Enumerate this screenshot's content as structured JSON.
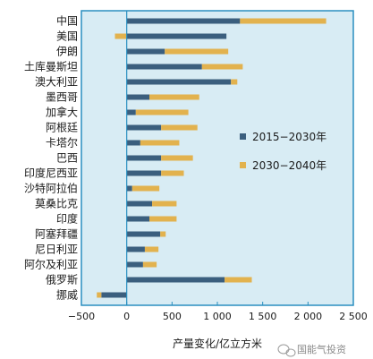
{
  "chart_data": {
    "type": "bar",
    "orientation": "horizontal",
    "stacked": true,
    "categories": [
      "中国",
      "美国",
      "伊朗",
      "土库曼斯坦",
      "澳大利亚",
      "墨西哥",
      "加拿大",
      "阿根廷",
      "卡塔尔",
      "巴西",
      "印度尼西亚",
      "沙特阿拉伯",
      "莫桑比克",
      "印度",
      "阿塞拜疆",
      "尼日利亚",
      "阿尔及利亚",
      "俄罗斯",
      "挪威"
    ],
    "series": [
      {
        "name": "2015−2030年",
        "color": "#3b5f7e",
        "values": [
          1250,
          1100,
          420,
          830,
          1150,
          250,
          100,
          380,
          150,
          380,
          380,
          60,
          280,
          250,
          370,
          200,
          180,
          1080,
          -280
        ]
      },
      {
        "name": "2030−2040年",
        "color": "#e2b24e",
        "values": [
          950,
          -130,
          700,
          450,
          70,
          550,
          580,
          400,
          430,
          350,
          250,
          300,
          270,
          300,
          60,
          150,
          150,
          300,
          -50
        ]
      }
    ],
    "xlim": [
      -500,
      2500
    ],
    "xticks": [
      "−500",
      "0",
      "500",
      "1 000",
      "1 500",
      "2 000",
      "2 500"
    ],
    "xlabel": "产量变化/亿立方米",
    "legend_position": "right",
    "background_color": "#d8ecf4",
    "border_color": "#2a8fc0"
  },
  "watermark": {
    "text": "国能气投资"
  }
}
